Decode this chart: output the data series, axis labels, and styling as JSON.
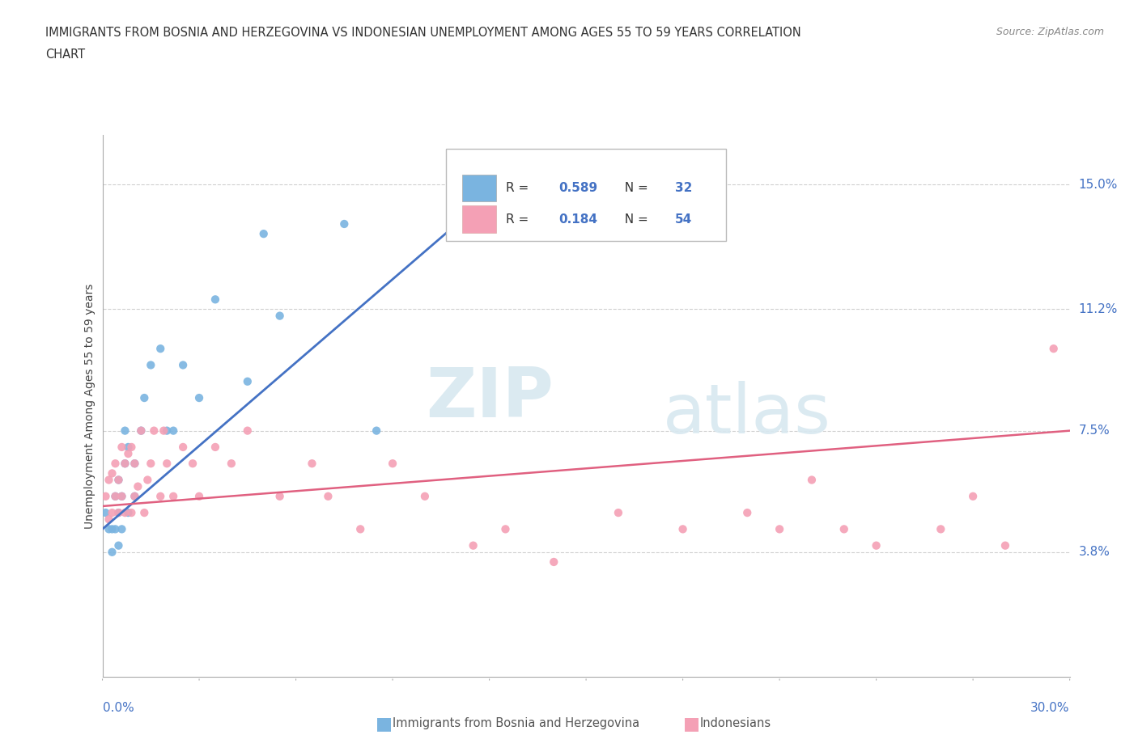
{
  "title_line1": "IMMIGRANTS FROM BOSNIA AND HERZEGOVINA VS INDONESIAN UNEMPLOYMENT AMONG AGES 55 TO 59 YEARS CORRELATION",
  "title_line2": "CHART",
  "source_text": "Source: ZipAtlas.com",
  "ylabel": "Unemployment Among Ages 55 to 59 years",
  "ytick_labels": [
    "3.8%",
    "7.5%",
    "11.2%",
    "15.0%"
  ],
  "ytick_values": [
    3.8,
    7.5,
    11.2,
    15.0
  ],
  "xlim": [
    0,
    30
  ],
  "ylim": [
    0,
    16.5
  ],
  "color_blue": "#7ab4e0",
  "color_pink": "#f4a0b5",
  "color_blue_line": "#4472c4",
  "color_pink_line": "#e06080",
  "legend_r_blue": "0.589",
  "legend_n_blue": "32",
  "legend_r_pink": "0.184",
  "legend_n_pink": "54",
  "watermark_zip": "ZIP",
  "watermark_atlas": "atlas",
  "blue_x": [
    0.1,
    0.2,
    0.3,
    0.3,
    0.4,
    0.4,
    0.5,
    0.5,
    0.5,
    0.6,
    0.6,
    0.7,
    0.7,
    0.8,
    0.8,
    1.0,
    1.0,
    1.2,
    1.3,
    1.5,
    1.8,
    2.0,
    2.2,
    2.5,
    3.0,
    3.5,
    4.5,
    5.0,
    5.5,
    7.5,
    8.5,
    11.0
  ],
  "blue_y": [
    5.0,
    4.5,
    3.8,
    4.5,
    4.5,
    5.5,
    4.0,
    5.0,
    6.0,
    4.5,
    5.5,
    6.5,
    7.5,
    5.0,
    7.0,
    5.5,
    6.5,
    7.5,
    8.5,
    9.5,
    10.0,
    7.5,
    7.5,
    9.5,
    8.5,
    11.5,
    9.0,
    13.5,
    11.0,
    13.8,
    7.5,
    14.0
  ],
  "pink_x": [
    0.1,
    0.2,
    0.2,
    0.3,
    0.3,
    0.4,
    0.4,
    0.5,
    0.5,
    0.6,
    0.6,
    0.7,
    0.7,
    0.8,
    0.9,
    0.9,
    1.0,
    1.0,
    1.1,
    1.2,
    1.3,
    1.4,
    1.5,
    1.6,
    1.8,
    1.9,
    2.0,
    2.2,
    2.5,
    2.8,
    3.0,
    3.5,
    4.0,
    4.5,
    5.5,
    6.5,
    7.0,
    8.0,
    9.0,
    10.0,
    11.5,
    12.5,
    14.0,
    16.0,
    18.0,
    20.0,
    21.0,
    22.0,
    23.0,
    24.0,
    26.0,
    27.0,
    28.0,
    29.5
  ],
  "pink_y": [
    5.5,
    4.8,
    6.0,
    5.0,
    6.2,
    5.5,
    6.5,
    5.0,
    6.0,
    5.5,
    7.0,
    5.0,
    6.5,
    6.8,
    5.0,
    7.0,
    5.5,
    6.5,
    5.8,
    7.5,
    5.0,
    6.0,
    6.5,
    7.5,
    5.5,
    7.5,
    6.5,
    5.5,
    7.0,
    6.5,
    5.5,
    7.0,
    6.5,
    7.5,
    5.5,
    6.5,
    5.5,
    4.5,
    6.5,
    5.5,
    4.0,
    4.5,
    3.5,
    5.0,
    4.5,
    5.0,
    4.5,
    6.0,
    4.5,
    4.0,
    4.5,
    5.5,
    4.0,
    10.0
  ],
  "blue_trendline_x": [
    0,
    13
  ],
  "blue_trendline_y": [
    4.5,
    15.5
  ],
  "pink_trendline_x": [
    0,
    30
  ],
  "pink_trendline_y": [
    5.2,
    7.5
  ]
}
